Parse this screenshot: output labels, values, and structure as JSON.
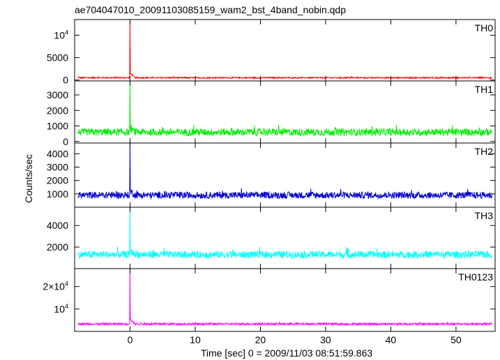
{
  "title": "ae704047010_20091103085159_wam2_bst_4band_nobin.qdp",
  "chart_data": {
    "type": "line",
    "xlabel": "Time [sec] 0 = 2009/11/03 08:51:59.863",
    "ylabel": "Counts/sec",
    "xlim": [
      -8.5,
      56
    ],
    "xticks": [
      {
        "value": 0,
        "label": "0"
      },
      {
        "value": 10,
        "label": "10"
      },
      {
        "value": 20,
        "label": "20"
      },
      {
        "value": 30,
        "label": "30"
      },
      {
        "value": 40,
        "label": "40"
      },
      {
        "value": 50,
        "label": "50"
      }
    ],
    "panels": [
      {
        "name": "TH0",
        "color": "#ff0000",
        "ylim": [
          -200,
          13500
        ],
        "yticks": [
          {
            "value": 0,
            "base": "0",
            "exp": ""
          },
          {
            "value": 5000,
            "base": "5000",
            "exp": ""
          },
          {
            "value": 10000,
            "base": "10",
            "exp": "4"
          }
        ],
        "baseline": 500,
        "noise": 150,
        "peak": 13500
      },
      {
        "name": "TH1",
        "color": "#00ee00",
        "ylim": [
          -100,
          3900
        ],
        "yticks": [
          {
            "value": 0,
            "base": "0",
            "exp": ""
          },
          {
            "value": 1000,
            "base": "1000",
            "exp": ""
          },
          {
            "value": 2000,
            "base": "2000",
            "exp": ""
          },
          {
            "value": 3000,
            "base": "3000",
            "exp": ""
          }
        ],
        "baseline": 600,
        "noise": 230,
        "peak": 3900
      },
      {
        "name": "TH2",
        "color": "#0000cc",
        "ylim": [
          0,
          4800
        ],
        "yticks": [
          {
            "value": 1000,
            "base": "1000",
            "exp": ""
          },
          {
            "value": 2000,
            "base": "2000",
            "exp": ""
          },
          {
            "value": 3000,
            "base": "3000",
            "exp": ""
          },
          {
            "value": 4000,
            "base": "4000",
            "exp": ""
          }
        ],
        "baseline": 900,
        "noise": 250,
        "peak": 4800
      },
      {
        "name": "TH3",
        "color": "#00ffff",
        "ylim": [
          0,
          5700
        ],
        "yticks": [
          {
            "value": 2000,
            "base": "2000",
            "exp": ""
          },
          {
            "value": 4000,
            "base": "4000",
            "exp": ""
          }
        ],
        "baseline": 1300,
        "noise": 330,
        "peak": 5700
      },
      {
        "name": "TH0123",
        "color": "#ff00ff",
        "ylim": [
          0,
          28000
        ],
        "yticks": [
          {
            "value": 10000,
            "base": "10",
            "exp": "4"
          },
          {
            "value": 20000,
            "base": "2×10",
            "exp": "4"
          }
        ],
        "baseline": 3300,
        "noise": 500,
        "peak": 28000
      }
    ]
  }
}
